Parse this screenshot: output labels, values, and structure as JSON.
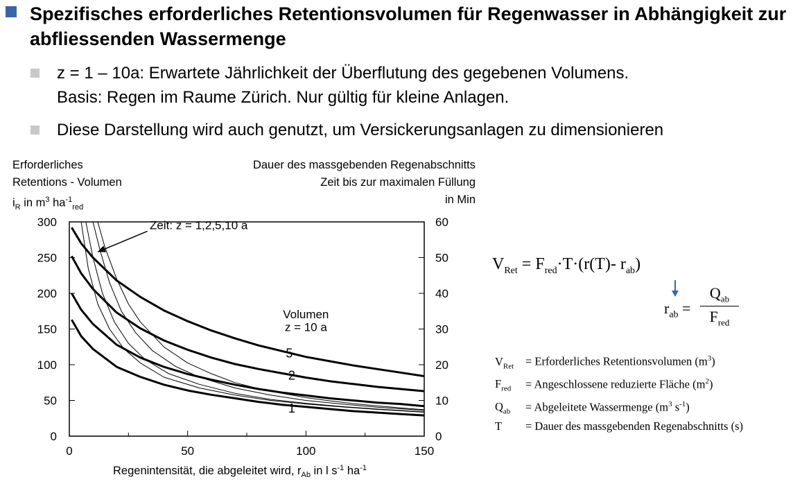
{
  "slide": {
    "title": "Spezifisches erforderliches Retentionsvolumen für Regenwasser in Abhängigkeit zur abfliessenden Wassermenge",
    "bullets": [
      {
        "line1": "z = 1 – 10a: Erwartete Jährlichkeit der Überflutung des gegebenen Volumens.",
        "line2": "Basis: Regen im Raume Zürich. Nur gültig für kleine Anlagen."
      },
      {
        "line1": "Diese Darstellung wird auch genutzt, um Versickerungsanlagen zu dimensionieren"
      }
    ],
    "colors": {
      "title_bullet": "#3a64a8",
      "sub_bullet": "#c8c8c8"
    }
  },
  "axes": {
    "left_label_line1": "Erforderliches",
    "left_label_line2": "Retentions - Volumen",
    "left_label_unit_prefix": "i",
    "left_label_unit_sub": "R",
    "left_label_unit_mid": " in m",
    "left_label_unit_sup1": "3",
    "left_label_unit_ha": " ha",
    "left_label_unit_sup2": "-1",
    "left_label_unit_sub2": "red",
    "right_label_line1": "Dauer des massgebenden Regenabschnitts",
    "right_label_line2": "Zeit bis zur maximalen Füllung",
    "right_label_line3": "in Min",
    "x_label_main": "Regenintensität, die abgeleitet wird, r",
    "x_label_sub": "Ab",
    "x_label_rest": " in l s",
    "x_label_sup1": "-1",
    "x_label_ha": " ha",
    "x_label_sup2": "-1"
  },
  "chart_data": {
    "type": "line",
    "xlabel": "Regenintensität, die abgeleitet wird, rAb in l s-1 ha-1",
    "ylabel": "Erforderliches Retentions - Volumen iR in m3 ha-1red",
    "y2label": "Dauer des massgebenden Regenabschnitts Zeit bis zur maximalen Füllung in Min",
    "xlim": [
      0,
      150
    ],
    "ylim": [
      0,
      300
    ],
    "y2lim": [
      0,
      60
    ],
    "xticks": [
      0,
      50,
      100,
      150
    ],
    "yticks": [
      0,
      50,
      100,
      150,
      200,
      250,
      300
    ],
    "y2ticks": [
      0,
      10,
      20,
      30,
      40,
      50,
      60
    ],
    "grid": false,
    "annotations": [
      {
        "text": "Volumen",
        "x": 100,
        "y": 165
      },
      {
        "text": "z = 10 a",
        "x": 100,
        "y": 147
      },
      {
        "text": "5",
        "x": 93,
        "y": 110
      },
      {
        "text": "2",
        "x": 94,
        "y": 79
      },
      {
        "text": "1",
        "x": 94,
        "y": 33
      },
      {
        "text": "Zeit: z = 1,2,5,10 a",
        "x": 34,
        "y": 290
      }
    ],
    "series": [
      {
        "name": "z = 10 a",
        "axis": "left",
        "x": [
          1,
          5,
          10,
          20,
          30,
          40,
          50,
          60,
          70,
          80,
          90,
          100,
          110,
          120,
          130,
          140,
          150
        ],
        "values": [
          292,
          270,
          250,
          218,
          195,
          176,
          161,
          148,
          137,
          127,
          119,
          111,
          105,
          99,
          94,
          89,
          84
        ]
      },
      {
        "name": "5",
        "axis": "left",
        "x": [
          1,
          5,
          10,
          20,
          30,
          40,
          50,
          60,
          70,
          80,
          90,
          100,
          110,
          120,
          130,
          140,
          150
        ],
        "values": [
          252,
          228,
          206,
          173,
          151,
          134,
          121,
          110,
          101,
          94,
          88,
          82,
          77,
          73,
          69,
          66,
          63
        ]
      },
      {
        "name": "2",
        "axis": "left",
        "x": [
          1,
          5,
          10,
          20,
          30,
          40,
          50,
          60,
          70,
          80,
          90,
          100,
          110,
          120,
          130,
          140,
          150
        ],
        "values": [
          200,
          177,
          157,
          128,
          110,
          97,
          87,
          79,
          72,
          66,
          61,
          57,
          53,
          50,
          47,
          45,
          42
        ]
      },
      {
        "name": "1",
        "axis": "left",
        "x": [
          1,
          5,
          10,
          20,
          30,
          40,
          50,
          60,
          70,
          80,
          90,
          100,
          110,
          120,
          130,
          140,
          150
        ],
        "values": [
          163,
          140,
          122,
          97,
          83,
          72,
          64,
          58,
          53,
          48,
          44,
          41,
          38,
          35,
          33,
          31,
          29
        ]
      },
      {
        "name": "Zeit z = 10 a",
        "axis": "right",
        "x": [
          12,
          15,
          20,
          25,
          30,
          40,
          50,
          60,
          70,
          80,
          90,
          100,
          110,
          120,
          130,
          140,
          150
        ],
        "values": [
          60,
          53,
          44,
          37,
          32,
          25,
          20.5,
          17.5,
          15,
          13.3,
          12,
          10.8,
          9.9,
          9.1,
          8.5,
          7.9,
          7.4
        ]
      },
      {
        "name": "Zeit z = 5 a",
        "axis": "right",
        "x": [
          10,
          13,
          17,
          22,
          28,
          35,
          45,
          55,
          70,
          85,
          100,
          115,
          130,
          150
        ],
        "values": [
          60,
          52,
          43,
          35,
          29,
          24,
          19.5,
          16.5,
          13.5,
          11.5,
          10,
          9,
          8.1,
          7.2
        ]
      },
      {
        "name": "Zeit z = 2 a",
        "axis": "right",
        "x": [
          7,
          10,
          14,
          19,
          25,
          32,
          42,
          55,
          70,
          85,
          100,
          115,
          130,
          150
        ],
        "values": [
          60,
          50,
          40,
          32,
          26,
          21.5,
          17.5,
          14.5,
          12,
          10.3,
          9.2,
          8.3,
          7.6,
          6.8
        ]
      },
      {
        "name": "Zeit z = 1 a",
        "axis": "right",
        "x": [
          5,
          8,
          12,
          17,
          23,
          30,
          40,
          55,
          70,
          85,
          100,
          115,
          130,
          150
        ],
        "values": [
          60,
          47,
          37,
          30,
          24.5,
          20.5,
          16.5,
          13.5,
          11.5,
          10,
          9,
          8.2,
          7.5,
          6.7
        ]
      }
    ]
  },
  "formula": {
    "v": "V",
    "v_sub": "Ret",
    "eq": " = F",
    "f_sub": "red",
    "t": "·T·(r(T)- r",
    "r_sub": "ab",
    "close": ")",
    "r2": "r",
    "r2_sub": "ab",
    "eq2": "=",
    "num": "Q",
    "num_sub": "ab",
    "den": "F",
    "den_sub": "red",
    "arrow_color": "#3a64a8"
  },
  "legend": [
    {
      "sym": "V",
      "sub": "Ret",
      "text": "= Erforderliches Retentionsvolumen (m",
      "sup": "3",
      "end": ")"
    },
    {
      "sym": "F",
      "sub": "red",
      "text": "= Angeschlossene reduzierte Fläche (m",
      "sup": "2",
      "end": ")"
    },
    {
      "sym": "Q",
      "sub": "ab",
      "text": "= Abgeleitete Wassermenge (m",
      "sup": "3",
      "mid": " s",
      "sup2": "-1",
      "end": ")"
    },
    {
      "sym": "T",
      "sub": "",
      "text": "= Dauer des massgebenden Regenabschnitts (s)"
    }
  ]
}
